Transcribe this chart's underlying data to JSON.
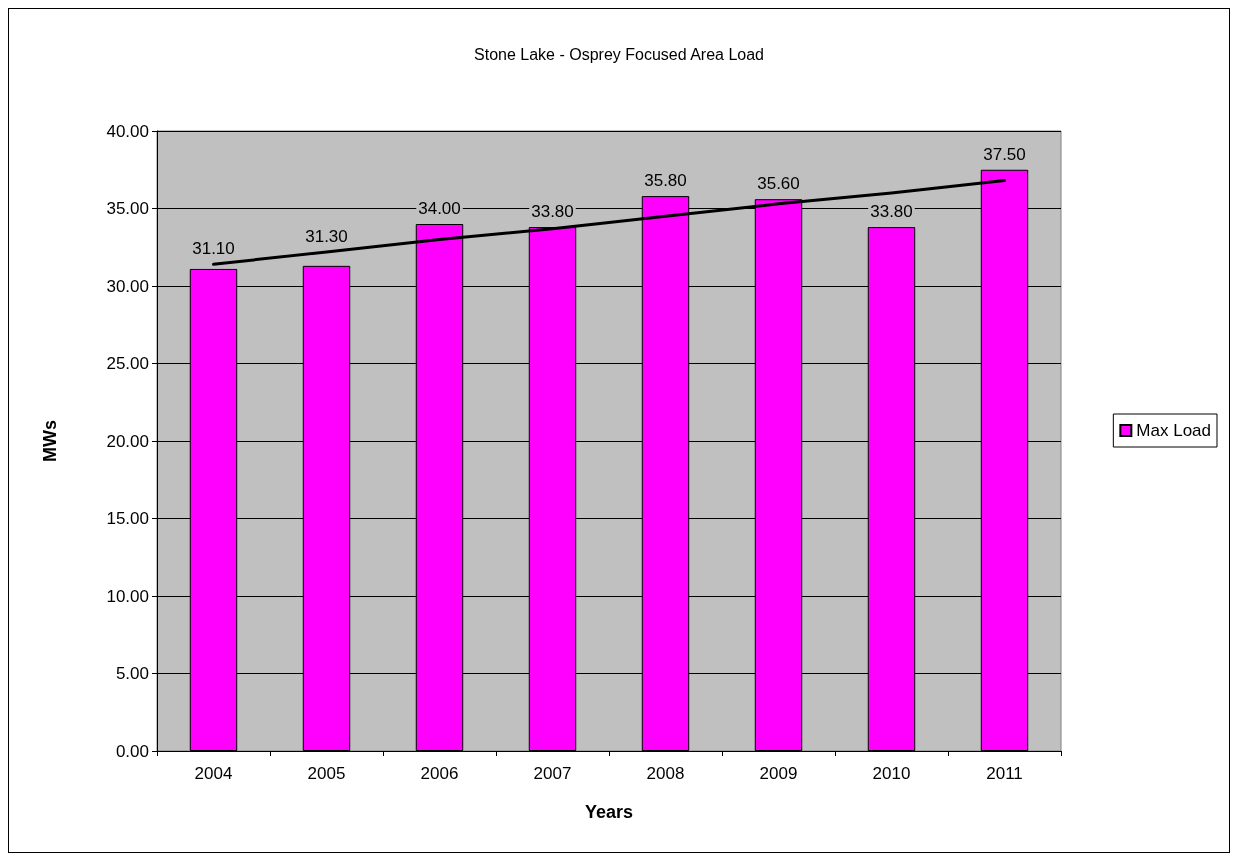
{
  "chart_data": {
    "type": "bar",
    "title": "Stone Lake - Osprey Focused Area Load",
    "xlabel": "Years",
    "ylabel": "MWs",
    "categories": [
      "2004",
      "2005",
      "2006",
      "2007",
      "2008",
      "2009",
      "2010",
      "2011"
    ],
    "series": [
      {
        "name": "Max Load",
        "color": "#ff00ff",
        "values": [
          31.1,
          31.3,
          34.0,
          33.8,
          35.8,
          35.6,
          33.8,
          37.5
        ],
        "value_labels": [
          "31.10",
          "31.30",
          "34.00",
          "33.80",
          "35.80",
          "35.60",
          "33.80",
          "37.50"
        ]
      },
      {
        "type": "line",
        "color": "#000000",
        "values": [
          31.4,
          32.2,
          33.0,
          33.7,
          34.5,
          35.3,
          36.0,
          36.8
        ]
      }
    ],
    "ylim": [
      0,
      40
    ],
    "yticks": [
      {
        "value": 0,
        "label": "0.00"
      },
      {
        "value": 5,
        "label": "5.00"
      },
      {
        "value": 10,
        "label": "10.00"
      },
      {
        "value": 15,
        "label": "15.00"
      },
      {
        "value": 20,
        "label": "20.00"
      },
      {
        "value": 25,
        "label": "25.00"
      },
      {
        "value": 30,
        "label": "30.00"
      },
      {
        "value": 35,
        "label": "35.00"
      },
      {
        "value": 40,
        "label": "40.00"
      }
    ],
    "grid": "y",
    "legend": "right",
    "marker": "none"
  }
}
